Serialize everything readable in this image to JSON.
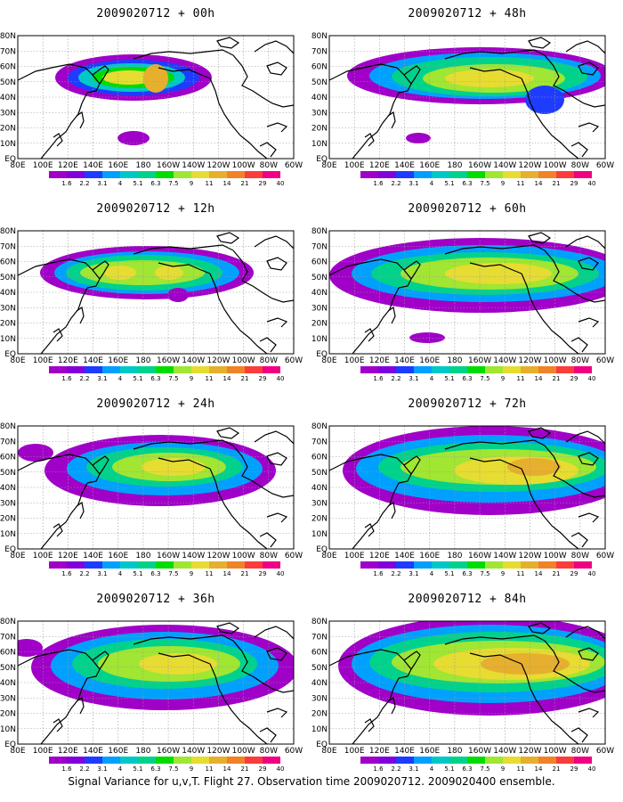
{
  "caption": "Signal Variance for u,v,T. Flight 27. Observation time 2009020712. 2009020400 ensemble.",
  "lat_labels": [
    "80N",
    "70N",
    "60N",
    "50N",
    "40N",
    "30N",
    "20N",
    "10N",
    "EQ"
  ],
  "lon_labels": [
    "80E",
    "100E",
    "120E",
    "140E",
    "160E",
    "180",
    "160W",
    "140W",
    "120W",
    "100W",
    "80W",
    "60W"
  ],
  "colorbar": {
    "labels": [
      "1.6",
      "2.2",
      "3.1",
      "4",
      "5.1",
      "6.3",
      "7.5",
      "9",
      "11",
      "14",
      "21",
      "29",
      "40"
    ],
    "colors": [
      "#a000c8",
      "#8200dc",
      "#1e3cff",
      "#00a0ff",
      "#00c8c8",
      "#00d28c",
      "#00dc00",
      "#a0e632",
      "#e6dc32",
      "#e6af2d",
      "#f08228",
      "#fa3c3c",
      "#f00082"
    ]
  },
  "panels": [
    {
      "title": "2009020712 + 00h"
    },
    {
      "title": "2009020712 + 48h"
    },
    {
      "title": "2009020712 + 12h"
    },
    {
      "title": "2009020712 + 60h"
    },
    {
      "title": "2009020712 + 24h"
    },
    {
      "title": "2009020712 + 72h"
    },
    {
      "title": "2009020712 + 36h"
    },
    {
      "title": "2009020712 + 84h"
    }
  ]
}
